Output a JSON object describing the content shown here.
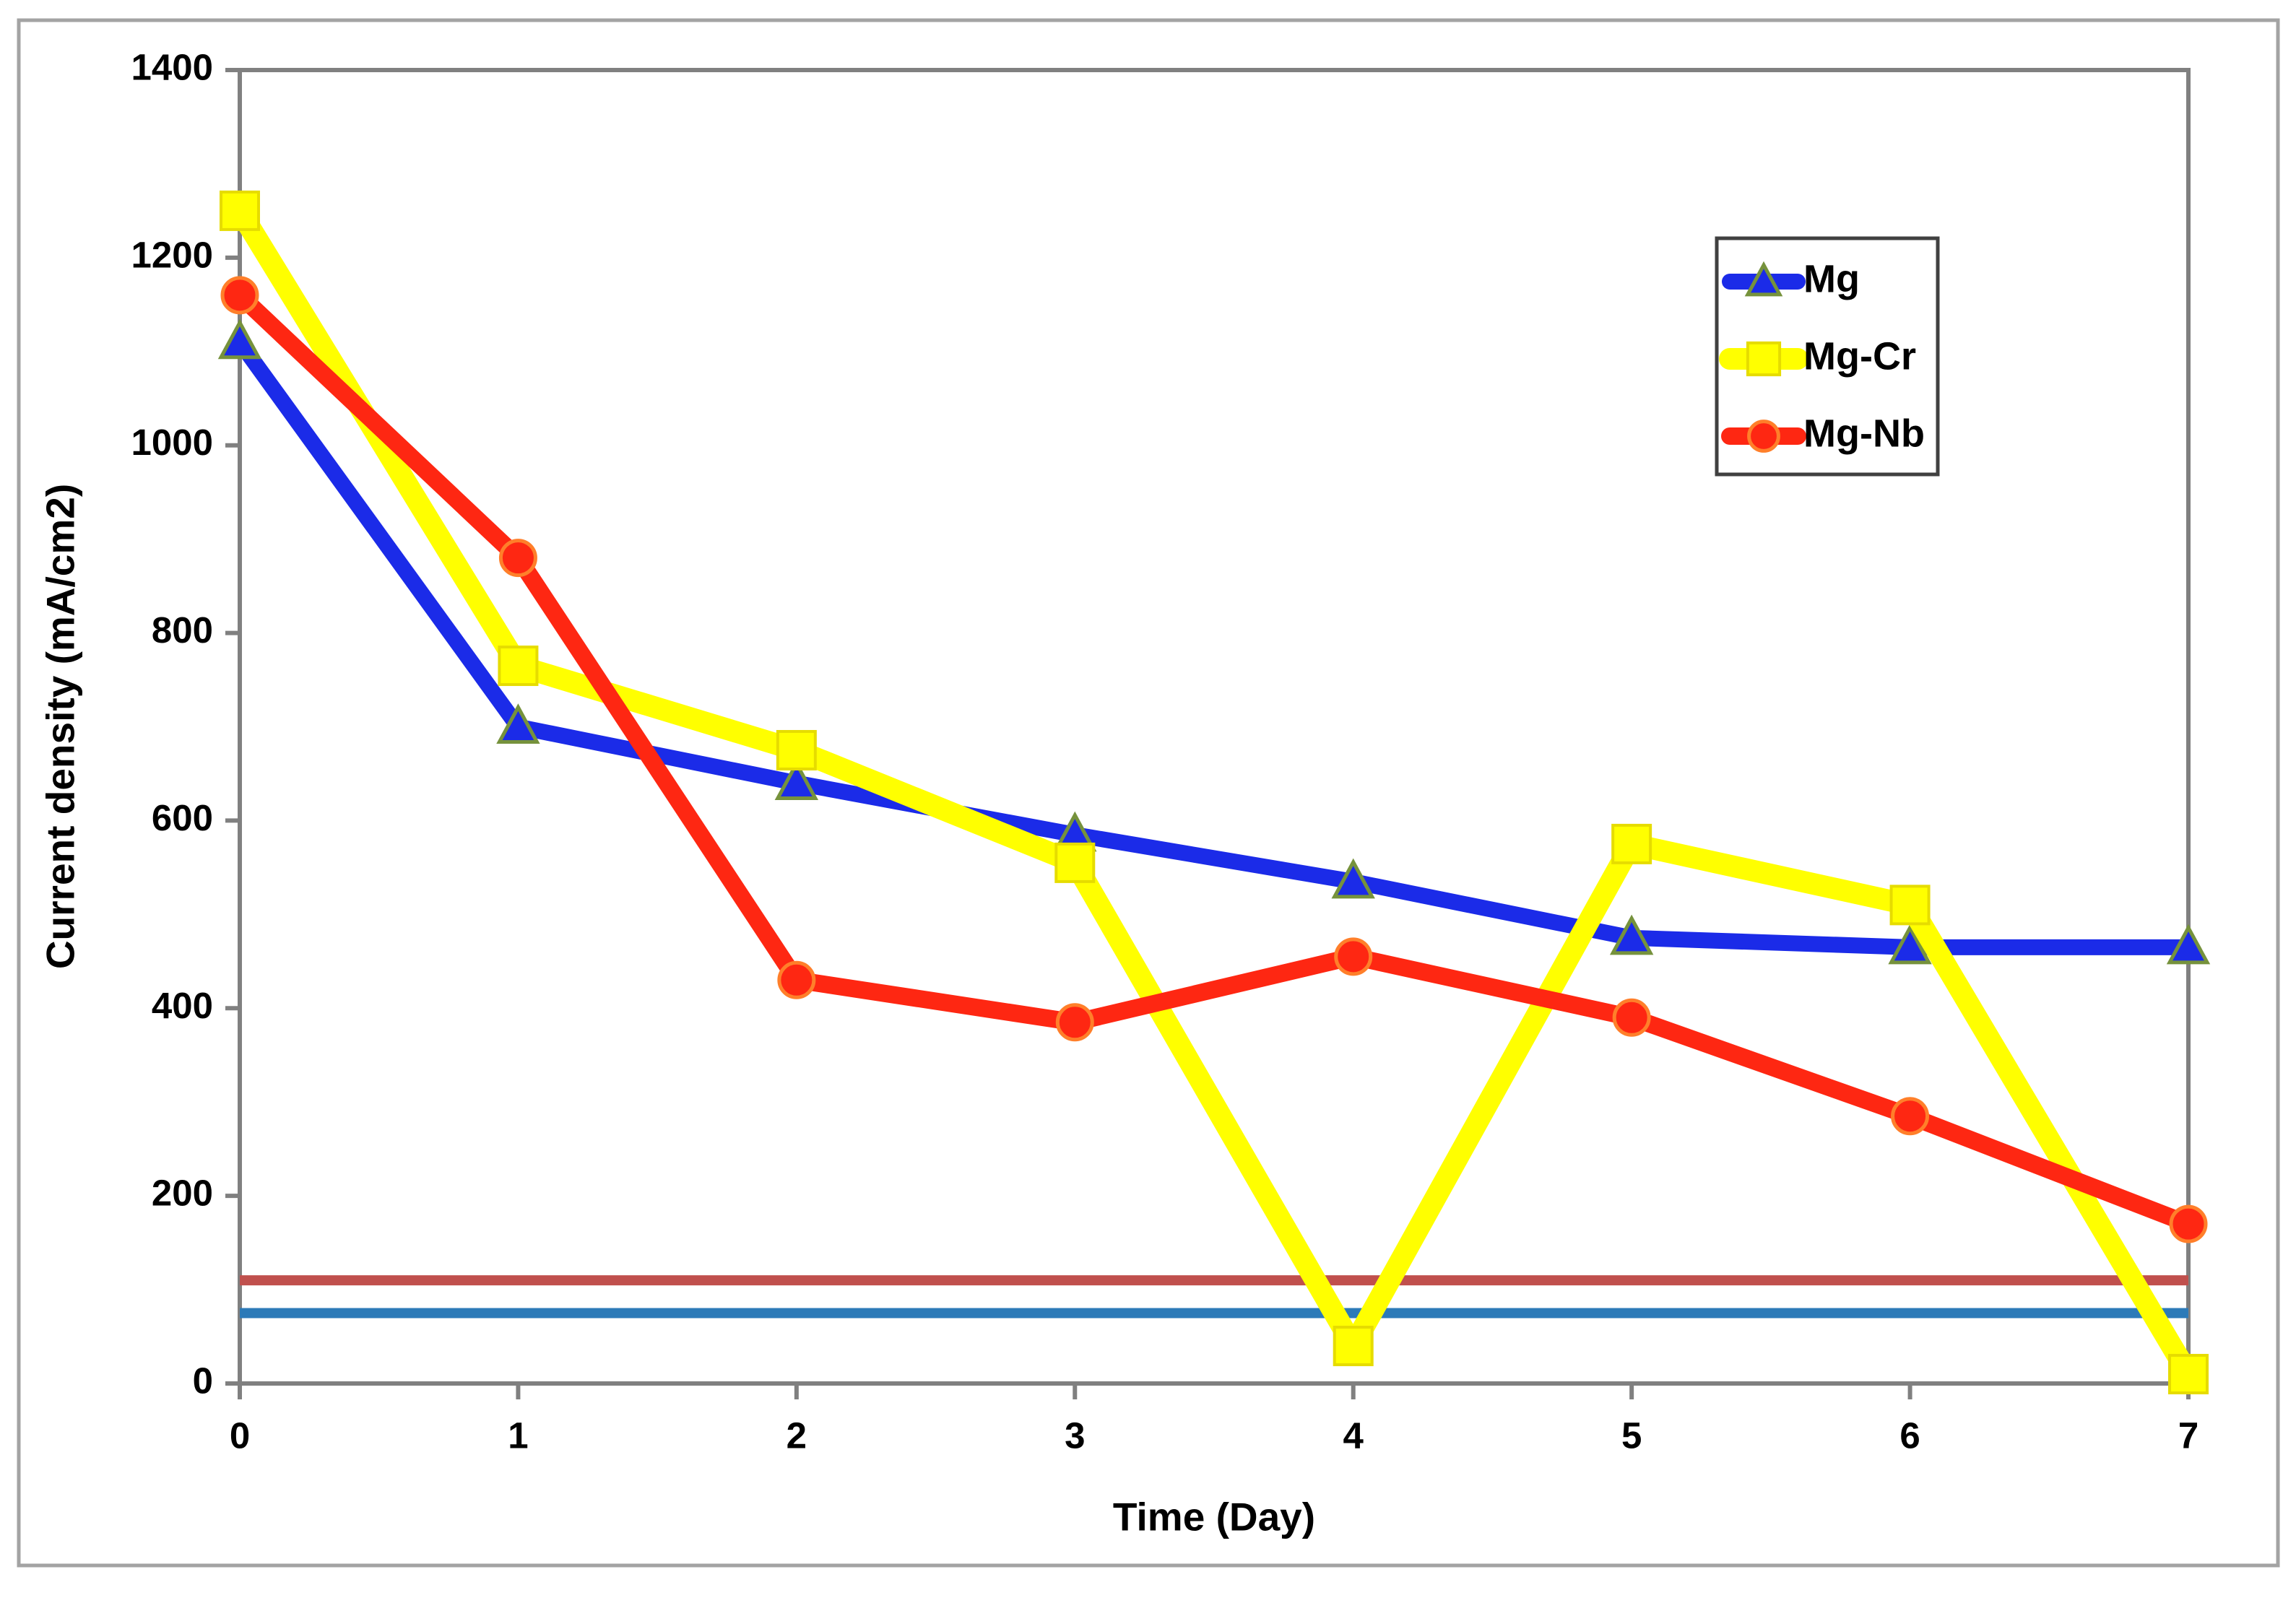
{
  "chart_data": {
    "type": "line",
    "x": [
      0,
      1,
      2,
      3,
      4,
      5,
      6,
      7
    ],
    "xticks": [
      "0",
      "1",
      "2",
      "3",
      "4",
      "5",
      "6",
      "7"
    ],
    "yticks": [
      0,
      200,
      400,
      600,
      800,
      1000,
      1200,
      1400
    ],
    "xlim": [
      0,
      7
    ],
    "ylim": [
      0,
      1400
    ],
    "xlabel": "Time (Day)",
    "ylabel": "Current density  (mA/cm2)",
    "grid": false,
    "legend_position": "upper right",
    "series": [
      {
        "name": "Mg",
        "marker": "triangle",
        "line_color": "#1b2be8",
        "marker_fill": "#1b2be8",
        "marker_edge": "#76923c",
        "values": [
          1110,
          700,
          640,
          585,
          535,
          475,
          465,
          465
        ]
      },
      {
        "name": "Mg-Cr",
        "marker": "square",
        "line_color": "#ffff00",
        "marker_fill": "#ffff00",
        "marker_edge": "#e6dc00",
        "values": [
          1250,
          765,
          675,
          555,
          40,
          575,
          510,
          10
        ]
      },
      {
        "name": "Mg-Nb",
        "marker": "circle",
        "line_color": "#fe2712",
        "marker_fill": "#fe2712",
        "marker_edge": "#ff7f2a",
        "values": [
          1160,
          880,
          430,
          385,
          455,
          390,
          285,
          170
        ]
      }
    ],
    "reference_lines": [
      {
        "name": "red-baseline",
        "value": 110,
        "color": "#c0504d"
      },
      {
        "name": "blue-baseline",
        "value": 75,
        "color": "#2c7ab8"
      }
    ]
  }
}
